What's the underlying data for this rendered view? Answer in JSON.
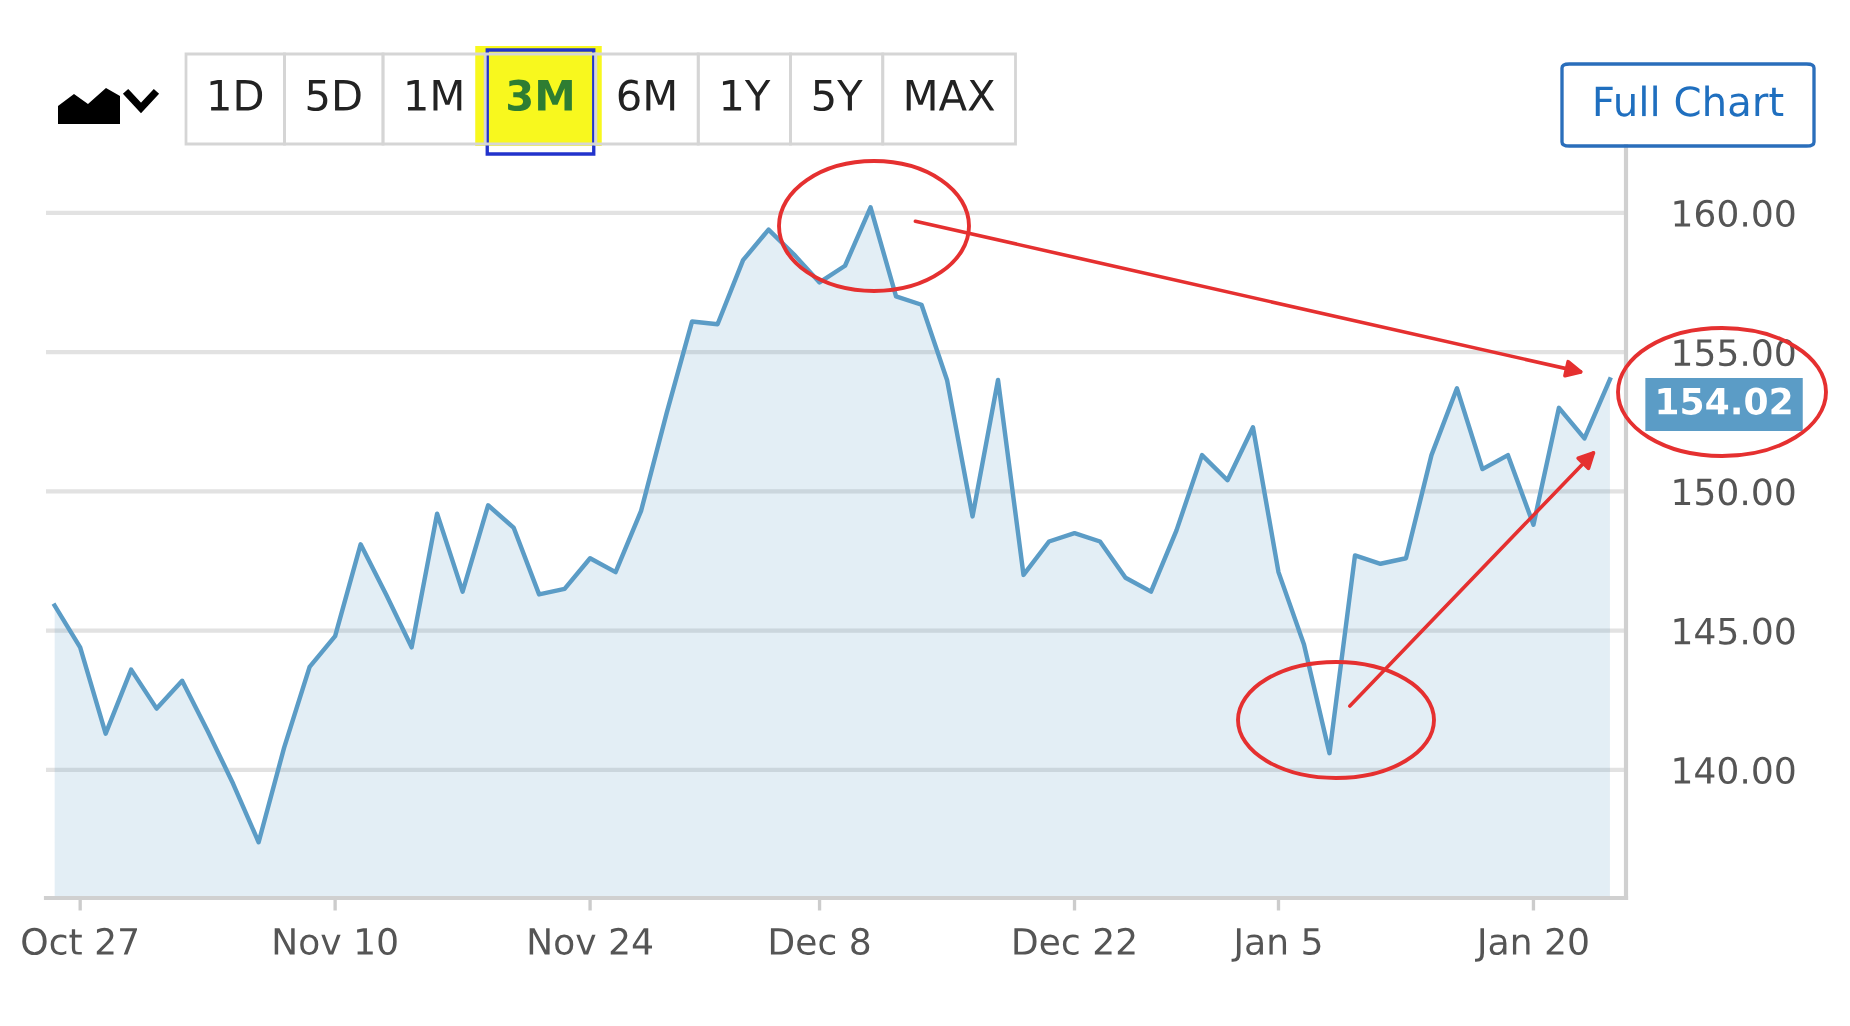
{
  "chart_data": {
    "type": "area",
    "categories": [
      null,
      "Oct 27",
      null,
      null,
      null,
      null,
      null,
      null,
      null,
      null,
      null,
      "Nov 10",
      null,
      null,
      null,
      null,
      null,
      null,
      null,
      null,
      null,
      "Nov 24",
      null,
      null,
      null,
      null,
      null,
      null,
      null,
      null,
      "Dec 8",
      null,
      null,
      null,
      null,
      null,
      null,
      null,
      null,
      null,
      "Dec 22",
      null,
      null,
      null,
      null,
      null,
      null,
      null,
      "Jan 5",
      null,
      null,
      null,
      null,
      null,
      null,
      null,
      null,
      null,
      "Jan 20",
      null,
      null,
      null
    ],
    "values": [
      145.9,
      144.4,
      141.3,
      143.6,
      142.2,
      143.2,
      141.4,
      139.5,
      137.4,
      140.8,
      143.7,
      144.8,
      148.1,
      146.3,
      144.4,
      149.2,
      146.4,
      149.5,
      148.7,
      146.3,
      146.5,
      147.6,
      147.1,
      149.3,
      152.8,
      156.1,
      156.0,
      158.3,
      159.4,
      158.5,
      157.5,
      158.1,
      160.2,
      157.0,
      156.7,
      154.0,
      149.1,
      154.0,
      147.0,
      148.2,
      148.5,
      148.2,
      146.9,
      146.4,
      148.6,
      151.3,
      150.4,
      152.3,
      147.1,
      144.5,
      140.6,
      147.7,
      147.4,
      147.6,
      151.3,
      153.7,
      150.8,
      151.3,
      148.8,
      153.0,
      151.9,
      154.02
    ],
    "value_labels": [
      null,
      null,
      null,
      null,
      null,
      null,
      null,
      null,
      null,
      null,
      null,
      null,
      null,
      null,
      null,
      null,
      null,
      null,
      null,
      null,
      null,
      null,
      null,
      null,
      null,
      null,
      null,
      null,
      null,
      null,
      null,
      null,
      null,
      null,
      null,
      null,
      null,
      null,
      null,
      null,
      null,
      null,
      null,
      null,
      null,
      null,
      null,
      null,
      null,
      null,
      null,
      null,
      null,
      null,
      null,
      null,
      null,
      null,
      null,
      null,
      null,
      "154.02"
    ],
    "color": "#5b9cc6",
    "ylim": [
      135.4,
      162.4
    ],
    "yticks": [
      {
        "value": 140,
        "label": "140.00"
      },
      {
        "value": 145,
        "label": "145.00"
      },
      {
        "value": 150,
        "label": "150.00"
      },
      {
        "value": 155,
        "label": "155.00"
      },
      {
        "value": 160,
        "label": "160.00"
      }
    ],
    "grid": "y",
    "annotations": [
      "1D",
      "5D",
      "1M",
      "3M",
      "6M",
      "1Y",
      "5Y",
      "MAX",
      "Full Chart"
    ]
  }
}
